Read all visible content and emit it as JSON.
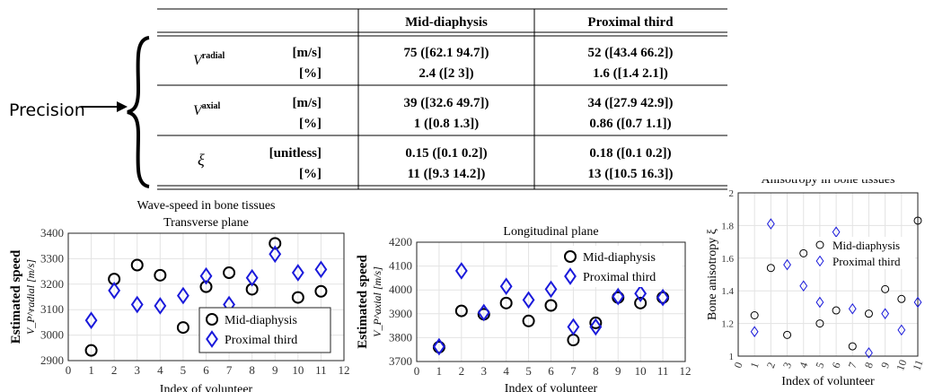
{
  "precision_label": "Precision",
  "table": {
    "headers": [
      "",
      "",
      "Mid-diaphysis",
      "Proximal third"
    ],
    "groups": [
      {
        "symbol_base": "V",
        "symbol_sup": "radial",
        "rows": [
          {
            "unit": "[m/s]",
            "mid": "75 ([62.1 94.7])",
            "prox": "52 ([43.4 66.2])"
          },
          {
            "unit": "[%]",
            "mid": "2.4 ([2 3])",
            "prox": "1.6 ([1.4 2.1])"
          }
        ]
      },
      {
        "symbol_base": "V",
        "symbol_sup": "axial",
        "rows": [
          {
            "unit": "[m/s]",
            "mid": "39 ([32.6 49.7])",
            "prox": "34 ([27.9 42.9])"
          },
          {
            "unit": "[%]",
            "mid": "1 ([0.8 1.3])",
            "prox": "0.86 ([0.7 1.1])"
          }
        ]
      },
      {
        "symbol_base": "ξ",
        "symbol_sup": "",
        "rows": [
          {
            "unit": "[unitless]",
            "mid": "0.15 ([0.1 0.2])",
            "prox": "0.18 ([0.1 0.2])"
          },
          {
            "unit": "[%]",
            "mid": "11 ([9.3 14.2])",
            "prox": "13 ([10.5 16.3])"
          }
        ]
      }
    ]
  },
  "chart_data": [
    {
      "type": "scatter",
      "title": "Wave-speed in bone tissues",
      "subtitle": "Transverse plane",
      "xlabel": "Index of volunteer",
      "ylabel": "Estimated speed",
      "ylabel_sub": "V_P^radial [m/s]",
      "xlim": [
        0,
        12
      ],
      "ylim": [
        2900,
        3400
      ],
      "xticks": [
        0,
        1,
        2,
        3,
        4,
        5,
        6,
        7,
        8,
        9,
        10,
        11,
        12
      ],
      "yticks": [
        2900,
        3000,
        3100,
        3200,
        3300,
        3400
      ],
      "grid": true,
      "legend_position": "bottom-right",
      "series": [
        {
          "name": "Mid-diaphysis",
          "marker": "circle",
          "color": "#000000",
          "x": [
            1,
            2,
            3,
            4,
            5,
            6,
            7,
            8,
            9,
            10,
            11
          ],
          "y": [
            2940,
            3220,
            3275,
            3235,
            3030,
            3190,
            3245,
            3180,
            3360,
            3148,
            3172
          ]
        },
        {
          "name": "Proximal third",
          "marker": "diamond",
          "color": "#1a1adb",
          "x": [
            1,
            2,
            3,
            4,
            5,
            6,
            7,
            8,
            9,
            10,
            11
          ],
          "y": [
            3058,
            3175,
            3120,
            3115,
            3155,
            3232,
            3120,
            3225,
            3318,
            3245,
            3258
          ]
        }
      ]
    },
    {
      "type": "scatter",
      "title": "Longitudinal plane",
      "xlabel": "Index of volunteer",
      "ylabel": "Estimated speed",
      "ylabel_sub": "V_P^axial [m/s]",
      "xlim": [
        0,
        12
      ],
      "ylim": [
        3700,
        4200
      ],
      "xticks": [
        0,
        1,
        2,
        3,
        4,
        5,
        6,
        7,
        8,
        9,
        10,
        11,
        12
      ],
      "yticks": [
        3700,
        3800,
        3900,
        4000,
        4100,
        4200
      ],
      "grid": true,
      "legend_position": "top-right",
      "series": [
        {
          "name": "Mid-diaphysis",
          "marker": "circle",
          "color": "#000000",
          "x": [
            1,
            2,
            3,
            4,
            5,
            6,
            7,
            8,
            9,
            10,
            11
          ],
          "y": [
            3760,
            3912,
            3898,
            3945,
            3870,
            3935,
            3790,
            3862,
            3968,
            3945,
            3968
          ]
        },
        {
          "name": "Proximal third",
          "marker": "diamond",
          "color": "#1a1adb",
          "x": [
            1,
            2,
            3,
            4,
            5,
            6,
            7,
            8,
            9,
            10,
            11
          ],
          "y": [
            3762,
            4080,
            3905,
            4015,
            3958,
            4003,
            3845,
            3845,
            3972,
            3985,
            3968
          ]
        }
      ]
    },
    {
      "type": "scatter",
      "title": "Anisotropy in bone tissues",
      "xlabel": "Index of volunteer",
      "ylabel": "Bone anisotropy ξ",
      "xlim": [
        0,
        11
      ],
      "ylim": [
        1,
        2
      ],
      "xticks": [
        0,
        1,
        2,
        3,
        4,
        5,
        6,
        7,
        8,
        9,
        10,
        11
      ],
      "yticks": [
        1,
        1.2,
        1.4,
        1.6,
        1.8,
        2
      ],
      "grid": true,
      "legend_position": "top-right",
      "series": [
        {
          "name": "Mid-diaphysis",
          "marker": "circle",
          "color": "#000000",
          "x": [
            1,
            2,
            3,
            4,
            5,
            6,
            7,
            8,
            9,
            10,
            11
          ],
          "y": [
            1.25,
            1.54,
            1.13,
            1.63,
            1.2,
            1.28,
            1.06,
            1.26,
            1.41,
            1.35,
            1.83
          ]
        },
        {
          "name": "Proximal third",
          "marker": "diamond",
          "color": "#1a1adb",
          "x": [
            1,
            2,
            3,
            4,
            5,
            6,
            7,
            8,
            9,
            10,
            11
          ],
          "y": [
            1.15,
            1.81,
            1.56,
            1.43,
            1.33,
            1.76,
            1.29,
            1.02,
            1.26,
            1.16,
            1.33
          ]
        }
      ]
    }
  ]
}
